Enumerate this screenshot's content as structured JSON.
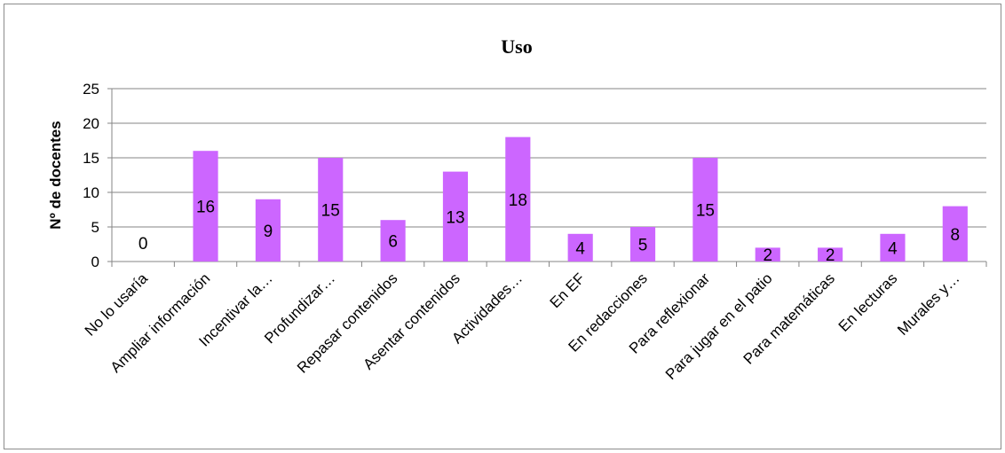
{
  "chart_data": {
    "type": "bar",
    "title": "Uso",
    "xlabel": "",
    "ylabel": "Nº de docentes",
    "ylim": [
      0,
      25
    ],
    "yticks": [
      0,
      5,
      10,
      15,
      20,
      25
    ],
    "grid": true,
    "legend": "none",
    "bar_color": "#cc66ff",
    "categories": [
      "No lo usaría",
      "Ampliar información",
      "Incentivar la…",
      "Profundizar…",
      "Repasar contenidos",
      "Asentar contenidos",
      "Actividades…",
      "En EF",
      "En redacciones",
      "Para reflexionar",
      "Para jugar en el patio",
      "Para matemáticas",
      "En lecturas",
      "Murales y…"
    ],
    "values": [
      0,
      16,
      9,
      15,
      6,
      13,
      18,
      4,
      5,
      15,
      2,
      2,
      4,
      8
    ]
  }
}
